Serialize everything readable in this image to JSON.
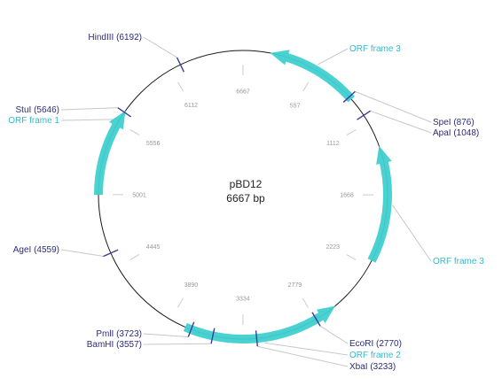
{
  "plasmid": {
    "name": "pBD12",
    "size_label": "6667 bp",
    "total_bp": 6667
  },
  "colors": {
    "backbone": "#1a1a1a",
    "site_line": "#3b3b9c",
    "site_text": "#2b2b7c",
    "orf_fill": "#40d0d0",
    "orf_text": "#36b9c6",
    "tick": "#cccccc",
    "callout": "#c8c8c8"
  },
  "ticks": [
    {
      "bp": 0,
      "label": "6667"
    },
    {
      "bp": 557,
      "label": "557"
    },
    {
      "bp": 1112,
      "label": "1112"
    },
    {
      "bp": 1668,
      "label": "1668"
    },
    {
      "bp": 2223,
      "label": "2223"
    },
    {
      "bp": 2779,
      "label": "2779"
    },
    {
      "bp": 3334,
      "label": "3334"
    },
    {
      "bp": 3890,
      "label": "3890"
    },
    {
      "bp": 4445,
      "label": "4445"
    },
    {
      "bp": 5001,
      "label": "5001"
    },
    {
      "bp": 5556,
      "label": "5556"
    },
    {
      "bp": 6112,
      "label": "6112"
    }
  ],
  "sites": [
    {
      "id": "hindiii",
      "bp": 6192,
      "label": "HindIII (6192)"
    },
    {
      "id": "stui",
      "bp": 5646,
      "label": "StuI (5646)"
    },
    {
      "id": "agei",
      "bp": 4559,
      "label": "AgeI (4559)"
    },
    {
      "id": "pmli",
      "bp": 3723,
      "label": "PmlI (3723)"
    },
    {
      "id": "bamhi",
      "bp": 3557,
      "label": "BamHI (3557)"
    },
    {
      "id": "xbai",
      "bp": 3233,
      "label": "XbaI (3233)"
    },
    {
      "id": "ecori",
      "bp": 2770,
      "label": "EcoRI (2770)"
    },
    {
      "id": "apai",
      "bp": 1048,
      "label": "ApaI (1048)"
    },
    {
      "id": "spei",
      "bp": 876,
      "label": "SpeI (876)"
    }
  ],
  "orfs": [
    {
      "id": "orf-3-top",
      "start_bp": 200,
      "end_bp": 900,
      "direction": "ccw",
      "label": "ORF frame 3"
    },
    {
      "id": "orf-3-right",
      "start_bp": 1300,
      "end_bp": 2170,
      "direction": "ccw",
      "label": "ORF frame 3"
    },
    {
      "id": "orf-2",
      "start_bp": 2600,
      "end_bp": 3770,
      "direction": "ccw",
      "label": "ORF frame 2"
    },
    {
      "id": "orf-1",
      "start_bp": 5000,
      "end_bp": 5660,
      "direction": "cw",
      "label": "ORF frame 1"
    }
  ]
}
